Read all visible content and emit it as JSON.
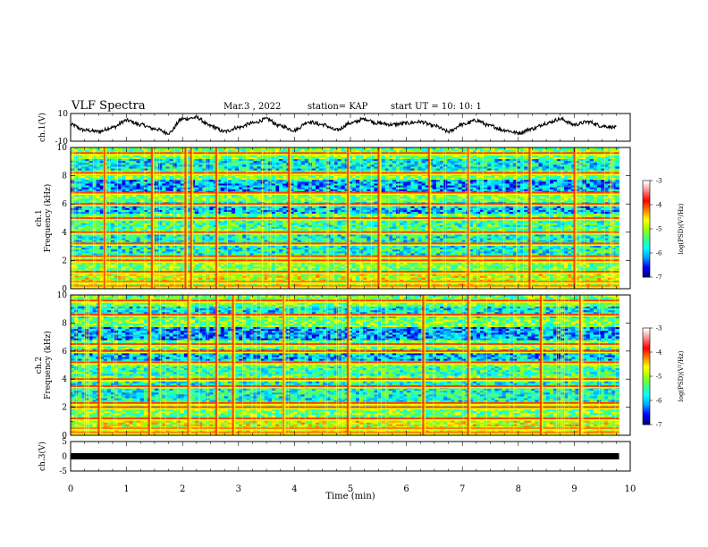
{
  "header": {
    "title": "VLF Spectra",
    "date": "Mar.3 , 2022",
    "station": "station= KAP",
    "start": "start UT = 10: 10: 1"
  },
  "chart_data": [
    {
      "type": "line",
      "panel": "ch1-waveform",
      "ylabel": "ch.1(V)",
      "ylim": [
        -10,
        10
      ],
      "yticks": [
        "10",
        "-10"
      ],
      "x": [
        0.0,
        0.25,
        0.5,
        0.75,
        1.0,
        1.25,
        1.5,
        1.75,
        2.0,
        2.25,
        2.5,
        2.75,
        3.0,
        3.25,
        3.5,
        3.75,
        4.0,
        4.25,
        4.5,
        4.75,
        5.0,
        5.25,
        5.5,
        5.75,
        6.0,
        6.25,
        6.5,
        6.75,
        7.0,
        7.25,
        7.5,
        7.75,
        8.0,
        8.25,
        8.5,
        8.75,
        9.0,
        9.25,
        9.5,
        9.75
      ],
      "y": [
        2,
        -2,
        -3,
        0,
        5,
        2,
        -1,
        -4,
        6,
        7,
        1,
        -3,
        0,
        3,
        6,
        1,
        -2,
        4,
        2,
        -2,
        3,
        6,
        3,
        2,
        3,
        4,
        1,
        -3,
        2,
        5,
        1,
        -2,
        -4,
        -1,
        3,
        6,
        2,
        4,
        1,
        0
      ],
      "xlim": [
        0,
        10
      ]
    },
    {
      "type": "heatmap",
      "panel": "ch1-spectrogram",
      "ylabel": "ch.1 Frequency (kHz)",
      "xlim": [
        0,
        10
      ],
      "ylim": [
        0,
        10
      ],
      "yticks": [
        "0",
        "2",
        "4",
        "6",
        "8",
        "10"
      ],
      "colorbar": {
        "label": "log(PSD)(V²/Hz)",
        "range": [
          -7,
          -3
        ],
        "ticks": [
          "-3",
          "-4",
          "-5",
          "-6",
          "-7"
        ],
        "colors": [
          "#000080",
          "#0000ff",
          "#00a0ff",
          "#00ffff",
          "#40ff80",
          "#a0ff00",
          "#ffff00",
          "#ff8000",
          "#ff0000",
          "#ff8080",
          "#ffffff"
        ]
      },
      "horizontal_lines_khz": [
        0.2,
        0.5,
        1.2,
        2.0,
        2.3,
        3.2,
        4.0,
        5.0,
        6.0,
        6.8,
        8.2,
        9.6
      ],
      "vertical_events_min": [
        0.6,
        1.45,
        2.05,
        2.15,
        2.6,
        3.9,
        4.95,
        5.5,
        6.4,
        7.1,
        8.2,
        9.0
      ]
    },
    {
      "type": "heatmap",
      "panel": "ch2-spectrogram",
      "ylabel": "ch.2 Frequency (kHz)",
      "xlim": [
        0,
        10
      ],
      "ylim": [
        0,
        10
      ],
      "yticks": [
        "0",
        "2",
        "4",
        "6",
        "8",
        "10"
      ],
      "colorbar": {
        "label": "log(PSD)(V²/Hz)",
        "range": [
          -7,
          -3
        ],
        "ticks": [
          "-3",
          "-4",
          "-5",
          "-6",
          "-7"
        ],
        "colors": [
          "#000080",
          "#0000ff",
          "#00a0ff",
          "#00ffff",
          "#40ff80",
          "#a0ff00",
          "#ffff00",
          "#ff8000",
          "#ff0000",
          "#ff8080",
          "#ffffff"
        ]
      },
      "horizontal_lines_khz": [
        0.2,
        0.5,
        1.2,
        2.0,
        2.3,
        3.5,
        4.0,
        5.2,
        6.0,
        6.5,
        8.6,
        9.6
      ],
      "vertical_events_min": [
        0.5,
        1.4,
        2.1,
        2.6,
        2.9,
        3.8,
        4.95,
        6.3,
        7.1,
        8.4,
        9.1
      ]
    },
    {
      "type": "line",
      "panel": "ch3-waveform",
      "ylabel": "ch.3(V)",
      "ylim": [
        -5,
        5
      ],
      "yticks": [
        "5",
        "0",
        "-5"
      ],
      "x": [
        0,
        9.8
      ],
      "y": [
        0,
        0
      ],
      "xlim": [
        0,
        10
      ],
      "xlabel": "Time (min)",
      "xticks": [
        "0",
        "1",
        "2",
        "3",
        "4",
        "5",
        "6",
        "7",
        "8",
        "9",
        "10"
      ]
    }
  ]
}
